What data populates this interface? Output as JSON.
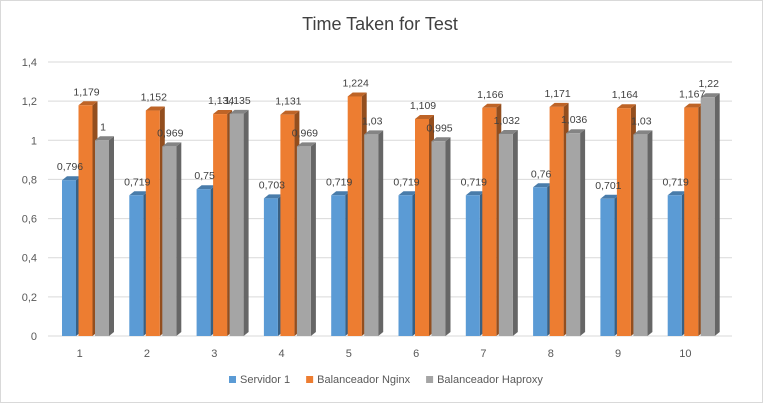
{
  "chart_data": {
    "type": "bar",
    "title": "Time Taken for Test",
    "xlabel": "",
    "ylabel": "",
    "categories": [
      "1",
      "2",
      "3",
      "4",
      "5",
      "6",
      "7",
      "8",
      "9",
      "10"
    ],
    "series": [
      {
        "name": "Servidor 1",
        "color": "#5b9bd5",
        "values": [
          0.796,
          0.719,
          0.75,
          0.703,
          0.719,
          0.719,
          0.719,
          0.76,
          0.701,
          0.719
        ],
        "labels": [
          "0,796",
          "0,719",
          "0,75",
          "0,703",
          "0,719",
          "0,719",
          "0,719",
          "0,76",
          "0,701",
          "0,719"
        ]
      },
      {
        "name": "Balanceador Nginx",
        "color": "#ed7d31",
        "values": [
          1.179,
          1.152,
          1.134,
          1.131,
          1.224,
          1.109,
          1.166,
          1.171,
          1.164,
          1.167
        ],
        "labels": [
          "1,179",
          "1,152",
          "1,134",
          "1,131",
          "1,224",
          "1,109",
          "1,166",
          "1,171",
          "1,164",
          "1,167"
        ]
      },
      {
        "name": "Balanceador Haproxy",
        "color": "#a5a5a5",
        "values": [
          1,
          0.969,
          1.135,
          0.969,
          1.03,
          0.995,
          1.032,
          1.036,
          1.03,
          1.22
        ],
        "labels": [
          "1",
          "0,969",
          "1,135",
          "0,969",
          "1,03",
          "0,995",
          "1,032",
          "1,036",
          "1,03",
          "1,22"
        ]
      }
    ],
    "ylim": [
      0,
      1.4
    ],
    "yticks": [
      0,
      0.2,
      0.4,
      0.6,
      0.8,
      1,
      1.2,
      1.4
    ],
    "ytick_labels": [
      "0",
      "0,2",
      "0,4",
      "0,6",
      "0,8",
      "1",
      "1,2",
      "1,4"
    ],
    "grid": true,
    "legend": "bottom",
    "style": "3d-clustered-column"
  }
}
